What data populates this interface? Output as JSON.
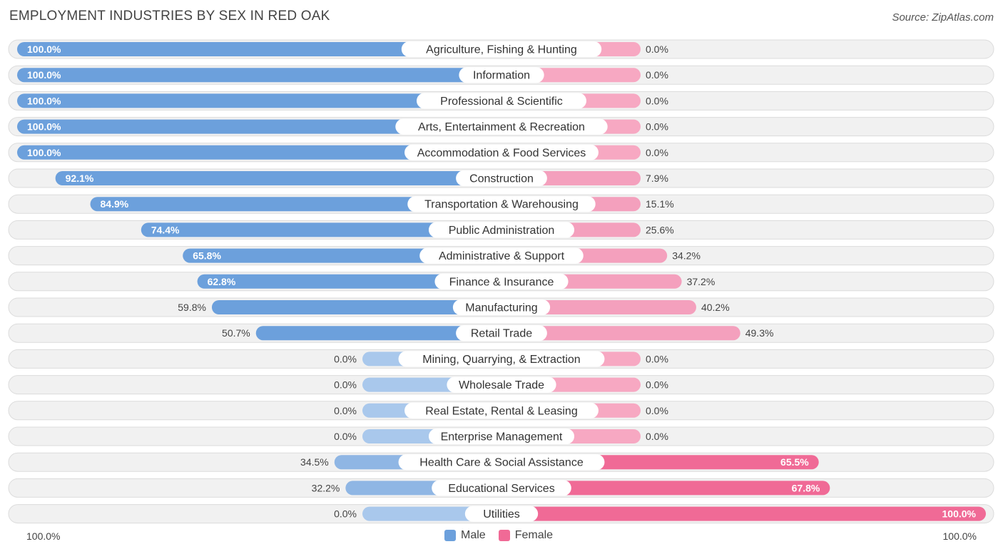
{
  "title": "EMPLOYMENT INDUSTRIES BY SEX IN RED OAK",
  "source": "Source: ZipAtlas.com",
  "axis": {
    "left_label": "100.0%",
    "right_label": "100.0%"
  },
  "legend": [
    {
      "name": "Male",
      "color": "#6ca0dc"
    },
    {
      "name": "Female",
      "color": "#f06a96"
    }
  ],
  "colors": {
    "male_strong": "#6ca0dc",
    "male_light": "#a9c8ec",
    "female_strong": "#f06a96",
    "female_light": "#f7a8c2",
    "track_bg": "#f1f1f1",
    "track_border": "#dcdcdc"
  },
  "chart_data": {
    "type": "bar",
    "orientation": "horizontal-diverging",
    "categories": [
      "Agriculture, Fishing & Hunting",
      "Information",
      "Professional & Scientific",
      "Arts, Entertainment & Recreation",
      "Accommodation & Food Services",
      "Construction",
      "Transportation & Warehousing",
      "Public Administration",
      "Administrative & Support",
      "Finance & Insurance",
      "Manufacturing",
      "Retail Trade",
      "Mining, Quarrying, & Extraction",
      "Wholesale Trade",
      "Real Estate, Rental & Leasing",
      "Enterprise Management",
      "Health Care & Social Assistance",
      "Educational Services",
      "Utilities"
    ],
    "series": [
      {
        "name": "Male",
        "values": [
          100.0,
          100.0,
          100.0,
          100.0,
          100.0,
          92.1,
          84.9,
          74.4,
          65.8,
          62.8,
          59.8,
          50.7,
          0.0,
          0.0,
          0.0,
          0.0,
          34.5,
          32.2,
          0.0
        ],
        "labels": [
          "100.0%",
          "100.0%",
          "100.0%",
          "100.0%",
          "100.0%",
          "92.1%",
          "84.9%",
          "74.4%",
          "65.8%",
          "62.8%",
          "59.8%",
          "50.7%",
          "0.0%",
          "0.0%",
          "0.0%",
          "0.0%",
          "34.5%",
          "32.2%",
          "0.0%"
        ]
      },
      {
        "name": "Female",
        "values": [
          0.0,
          0.0,
          0.0,
          0.0,
          0.0,
          7.9,
          15.1,
          25.6,
          34.2,
          37.2,
          40.2,
          49.3,
          0.0,
          0.0,
          0.0,
          0.0,
          65.5,
          67.8,
          100.0
        ],
        "labels": [
          "0.0%",
          "0.0%",
          "0.0%",
          "0.0%",
          "0.0%",
          "7.9%",
          "15.1%",
          "25.6%",
          "34.2%",
          "37.2%",
          "40.2%",
          "49.3%",
          "0.0%",
          "0.0%",
          "0.0%",
          "0.0%",
          "65.5%",
          "67.8%",
          "100.0%"
        ]
      }
    ],
    "xlim": [
      0,
      100
    ]
  }
}
